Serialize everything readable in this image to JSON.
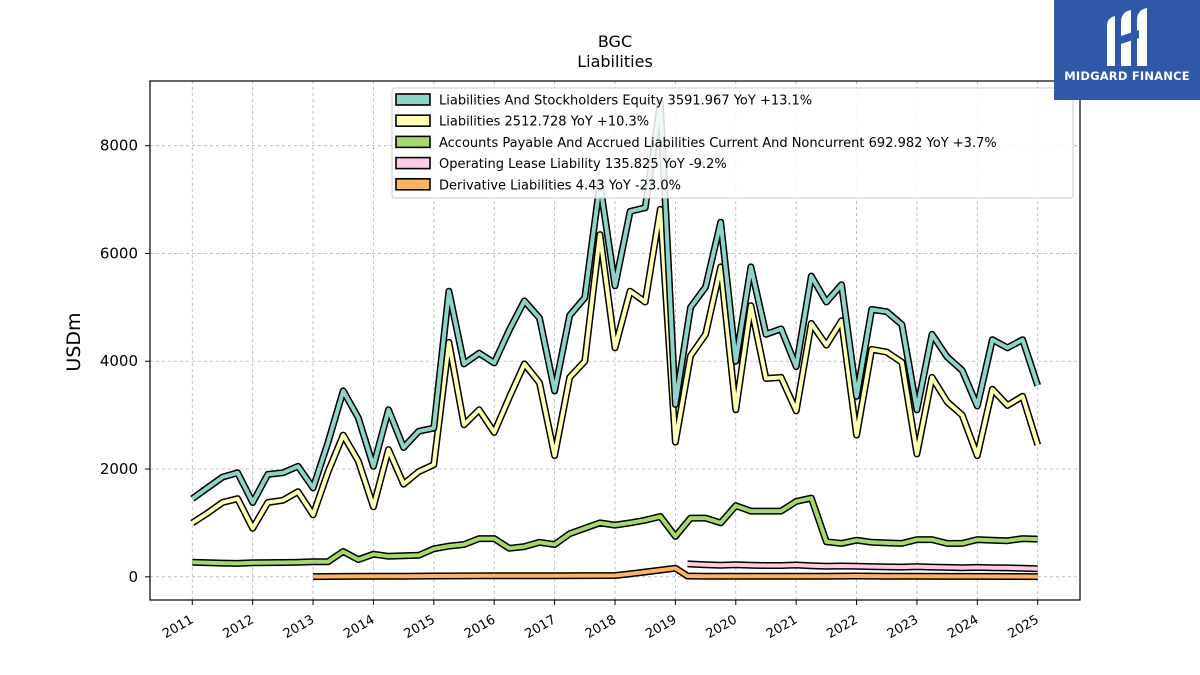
{
  "brand": {
    "name": "MIDGARD FINANCE",
    "bg_color": "#2f58a8",
    "logo_icon": "midgard-logo-icon"
  },
  "chart_data": {
    "type": "line",
    "title": "BGC",
    "subtitle": "Liabilities",
    "ylabel": "USDm",
    "xlabel": "",
    "ylim": [
      -430,
      9200
    ],
    "xlim": [
      2010.3,
      2025.7
    ],
    "yticks": [
      "0",
      "2000",
      "4000",
      "6000",
      "8000"
    ],
    "xticks": [
      "2011",
      "2012",
      "2013",
      "2014",
      "2015",
      "2016",
      "2017",
      "2018",
      "2019",
      "2020",
      "2021",
      "2022",
      "2023",
      "2024",
      "2025"
    ],
    "grid": true,
    "legend_position": "top-center",
    "series": [
      {
        "name": "Liabilities And Stockholders Equity",
        "legend": "Liabilities And Stockholders Equity  3591.967 YoY +13.1%",
        "color": "#8dd3c7",
        "points": [
          [
            2011.0,
            1450
          ],
          [
            2011.25,
            1650
          ],
          [
            2011.5,
            1850
          ],
          [
            2011.75,
            1930
          ],
          [
            2012.0,
            1380
          ],
          [
            2012.25,
            1900
          ],
          [
            2012.5,
            1930
          ],
          [
            2012.75,
            2050
          ],
          [
            2013.0,
            1650
          ],
          [
            2013.25,
            2500
          ],
          [
            2013.5,
            3450
          ],
          [
            2013.75,
            2950
          ],
          [
            2014.0,
            2050
          ],
          [
            2014.25,
            3100
          ],
          [
            2014.5,
            2400
          ],
          [
            2014.75,
            2700
          ],
          [
            2015.0,
            2760
          ],
          [
            2015.25,
            5300
          ],
          [
            2015.5,
            3950
          ],
          [
            2015.75,
            4150
          ],
          [
            2016.0,
            3970
          ],
          [
            2016.25,
            4580
          ],
          [
            2016.5,
            5120
          ],
          [
            2016.75,
            4800
          ],
          [
            2017.0,
            3450
          ],
          [
            2017.25,
            4850
          ],
          [
            2017.5,
            5180
          ],
          [
            2017.75,
            7300
          ],
          [
            2018.0,
            5400
          ],
          [
            2018.25,
            6780
          ],
          [
            2018.5,
            6850
          ],
          [
            2018.75,
            8800
          ],
          [
            2019.0,
            3200
          ],
          [
            2019.25,
            5000
          ],
          [
            2019.5,
            5380
          ],
          [
            2019.75,
            6580
          ],
          [
            2020.0,
            4000
          ],
          [
            2020.25,
            5750
          ],
          [
            2020.5,
            4500
          ],
          [
            2020.75,
            4600
          ],
          [
            2021.0,
            3900
          ],
          [
            2021.25,
            5580
          ],
          [
            2021.5,
            5100
          ],
          [
            2021.75,
            5420
          ],
          [
            2022.0,
            3350
          ],
          [
            2022.25,
            4960
          ],
          [
            2022.5,
            4920
          ],
          [
            2022.75,
            4680
          ],
          [
            2023.0,
            3100
          ],
          [
            2023.25,
            4500
          ],
          [
            2023.5,
            4080
          ],
          [
            2023.75,
            3830
          ],
          [
            2024.0,
            3170
          ],
          [
            2024.25,
            4400
          ],
          [
            2024.5,
            4250
          ],
          [
            2024.75,
            4400
          ],
          [
            2025.0,
            3550
          ]
        ]
      },
      {
        "name": "Liabilities",
        "legend": "Liabilities  2512.728 YoY +10.3%",
        "color": "#ffffb3",
        "points": [
          [
            2011.0,
            1000
          ],
          [
            2011.25,
            1180
          ],
          [
            2011.5,
            1380
          ],
          [
            2011.75,
            1450
          ],
          [
            2012.0,
            900
          ],
          [
            2012.25,
            1380
          ],
          [
            2012.5,
            1420
          ],
          [
            2012.75,
            1580
          ],
          [
            2013.0,
            1150
          ],
          [
            2013.25,
            1950
          ],
          [
            2013.5,
            2630
          ],
          [
            2013.75,
            2150
          ],
          [
            2014.0,
            1300
          ],
          [
            2014.25,
            2360
          ],
          [
            2014.5,
            1720
          ],
          [
            2014.75,
            1950
          ],
          [
            2015.0,
            2080
          ],
          [
            2015.25,
            4350
          ],
          [
            2015.5,
            2820
          ],
          [
            2015.75,
            3100
          ],
          [
            2016.0,
            2680
          ],
          [
            2016.25,
            3330
          ],
          [
            2016.5,
            3950
          ],
          [
            2016.75,
            3600
          ],
          [
            2017.0,
            2250
          ],
          [
            2017.25,
            3700
          ],
          [
            2017.5,
            4000
          ],
          [
            2017.75,
            6350
          ],
          [
            2018.0,
            4250
          ],
          [
            2018.25,
            5300
          ],
          [
            2018.5,
            5100
          ],
          [
            2018.75,
            6820
          ],
          [
            2019.0,
            2500
          ],
          [
            2019.25,
            4100
          ],
          [
            2019.5,
            4500
          ],
          [
            2019.75,
            5750
          ],
          [
            2020.0,
            3100
          ],
          [
            2020.25,
            5030
          ],
          [
            2020.5,
            3680
          ],
          [
            2020.75,
            3700
          ],
          [
            2021.0,
            3080
          ],
          [
            2021.25,
            4700
          ],
          [
            2021.5,
            4300
          ],
          [
            2021.75,
            4750
          ],
          [
            2022.0,
            2630
          ],
          [
            2022.25,
            4220
          ],
          [
            2022.5,
            4170
          ],
          [
            2022.75,
            3980
          ],
          [
            2023.0,
            2280
          ],
          [
            2023.25,
            3700
          ],
          [
            2023.5,
            3250
          ],
          [
            2023.75,
            3000
          ],
          [
            2024.0,
            2250
          ],
          [
            2024.25,
            3480
          ],
          [
            2024.5,
            3180
          ],
          [
            2024.75,
            3350
          ],
          [
            2025.0,
            2450
          ]
        ]
      },
      {
        "name": "Accounts Payable And Accrued Liabilities Current And Noncurrent",
        "legend": "Accounts Payable And Accrued Liabilities Current And Noncurrent  692.982 YoY +3.7%",
        "color": "#a6d96a",
        "points": [
          [
            2011.0,
            270
          ],
          [
            2011.5,
            255
          ],
          [
            2011.75,
            250
          ],
          [
            2012.0,
            260
          ],
          [
            2012.5,
            265
          ],
          [
            2012.75,
            270
          ],
          [
            2013.0,
            280
          ],
          [
            2013.25,
            280
          ],
          [
            2013.5,
            470
          ],
          [
            2013.75,
            320
          ],
          [
            2014.0,
            420
          ],
          [
            2014.25,
            380
          ],
          [
            2014.5,
            390
          ],
          [
            2014.75,
            400
          ],
          [
            2015.0,
            520
          ],
          [
            2015.25,
            570
          ],
          [
            2015.5,
            600
          ],
          [
            2015.75,
            710
          ],
          [
            2016.0,
            710
          ],
          [
            2016.25,
            530
          ],
          [
            2016.5,
            560
          ],
          [
            2016.75,
            640
          ],
          [
            2017.0,
            600
          ],
          [
            2017.25,
            800
          ],
          [
            2017.5,
            900
          ],
          [
            2017.75,
            1000
          ],
          [
            2018.0,
            960
          ],
          [
            2018.25,
            1000
          ],
          [
            2018.5,
            1050
          ],
          [
            2018.75,
            1120
          ],
          [
            2019.0,
            750
          ],
          [
            2019.25,
            1090
          ],
          [
            2019.5,
            1090
          ],
          [
            2019.75,
            1000
          ],
          [
            2020.0,
            1320
          ],
          [
            2020.25,
            1220
          ],
          [
            2020.5,
            1220
          ],
          [
            2020.75,
            1220
          ],
          [
            2021.0,
            1400
          ],
          [
            2021.25,
            1460
          ],
          [
            2021.5,
            650
          ],
          [
            2021.75,
            620
          ],
          [
            2022.0,
            680
          ],
          [
            2022.25,
            640
          ],
          [
            2022.5,
            630
          ],
          [
            2022.75,
            620
          ],
          [
            2023.0,
            690
          ],
          [
            2023.25,
            690
          ],
          [
            2023.5,
            620
          ],
          [
            2023.75,
            620
          ],
          [
            2024.0,
            690
          ],
          [
            2024.25,
            680
          ],
          [
            2024.5,
            670
          ],
          [
            2024.75,
            710
          ],
          [
            2025.0,
            700
          ]
        ]
      },
      {
        "name": "Operating Lease Liability",
        "legend": "Operating Lease Liability  135.825 YoY -9.2%",
        "color": "#fccde5",
        "points": [
          [
            2019.2,
            240
          ],
          [
            2019.5,
            225
          ],
          [
            2019.75,
            215
          ],
          [
            2020.0,
            225
          ],
          [
            2020.25,
            215
          ],
          [
            2020.5,
            210
          ],
          [
            2020.75,
            210
          ],
          [
            2021.0,
            220
          ],
          [
            2021.25,
            205
          ],
          [
            2021.5,
            195
          ],
          [
            2021.75,
            200
          ],
          [
            2022.0,
            195
          ],
          [
            2022.25,
            190
          ],
          [
            2022.5,
            185
          ],
          [
            2022.75,
            180
          ],
          [
            2023.0,
            190
          ],
          [
            2023.25,
            180
          ],
          [
            2023.5,
            175
          ],
          [
            2023.75,
            170
          ],
          [
            2024.0,
            175
          ],
          [
            2024.25,
            170
          ],
          [
            2024.5,
            165
          ],
          [
            2024.75,
            160
          ],
          [
            2025.0,
            150
          ]
        ]
      },
      {
        "name": "Derivative Liabilities",
        "legend": "Derivative Liabilities  4.43 YoY -23.0%",
        "color": "#fdb462",
        "points": [
          [
            2013.0,
            5
          ],
          [
            2013.5,
            8
          ],
          [
            2014.0,
            10
          ],
          [
            2014.5,
            12
          ],
          [
            2015.0,
            15
          ],
          [
            2015.5,
            18
          ],
          [
            2016.0,
            20
          ],
          [
            2016.5,
            20
          ],
          [
            2017.0,
            20
          ],
          [
            2017.5,
            22
          ],
          [
            2018.0,
            25
          ],
          [
            2018.25,
            55
          ],
          [
            2018.5,
            90
          ],
          [
            2018.75,
            125
          ],
          [
            2019.0,
            160
          ],
          [
            2019.2,
            15
          ],
          [
            2019.5,
            10
          ],
          [
            2020.0,
            12
          ],
          [
            2020.5,
            10
          ],
          [
            2021.0,
            12
          ],
          [
            2021.5,
            10
          ],
          [
            2022.0,
            15
          ],
          [
            2022.5,
            12
          ],
          [
            2023.0,
            10
          ],
          [
            2023.5,
            8
          ],
          [
            2024.0,
            8
          ],
          [
            2024.5,
            6
          ],
          [
            2025.0,
            5
          ]
        ]
      }
    ]
  }
}
